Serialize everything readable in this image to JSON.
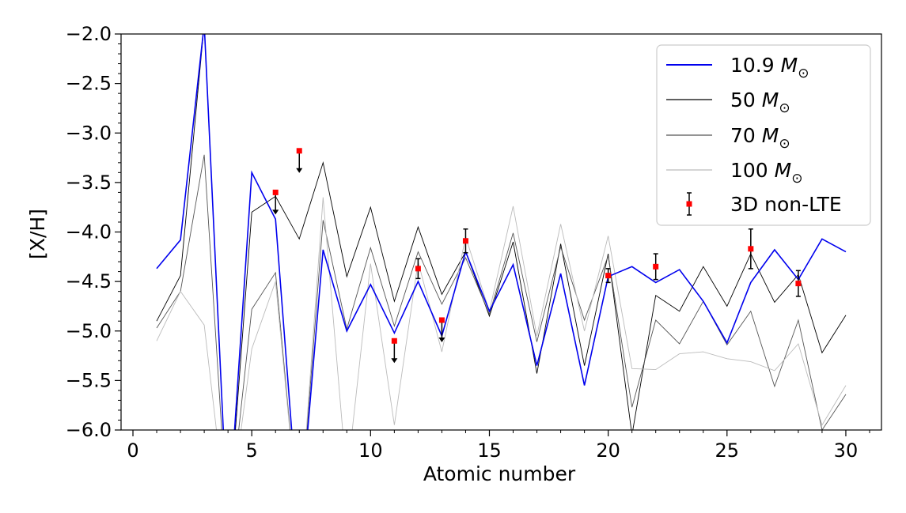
{
  "chart_data": {
    "type": "line",
    "xlabel": "Atomic number",
    "ylabel": "[X/H]",
    "xlim": [
      -0.5,
      31.5
    ],
    "ylim": [
      -6.0,
      -2.0
    ],
    "x_ticks": [
      0,
      5,
      10,
      15,
      20,
      25,
      30
    ],
    "x_tick_labels": [
      "0",
      "5",
      "10",
      "15",
      "20",
      "25",
      "30"
    ],
    "y_ticks": [
      -2.0,
      -2.5,
      -3.0,
      -3.5,
      -4.0,
      -4.5,
      -5.0,
      -5.5,
      -6.0
    ],
    "y_tick_labels": [
      "−2.0",
      "−2.5",
      "−3.0",
      "−3.5",
      "−4.0",
      "−4.5",
      "−5.0",
      "−5.5",
      "−6.0"
    ],
    "grid": false,
    "legend_position": "top-right",
    "series": [
      {
        "name": "10.9",
        "name_unit": "M",
        "color": "#0000ee",
        "width": 1.6,
        "x": [
          1,
          2,
          3,
          4,
          5,
          6,
          7,
          8,
          9,
          10,
          11,
          12,
          13,
          14,
          15,
          16,
          17,
          18,
          19,
          20,
          21,
          22,
          23,
          24,
          25,
          26,
          27,
          28,
          29,
          30
        ],
        "y": [
          -4.37,
          -4.08,
          -1.9,
          -7.0,
          -3.4,
          -3.87,
          -7.0,
          -4.18,
          -5.0,
          -4.53,
          -5.02,
          -4.5,
          -5.05,
          -4.2,
          -4.8,
          -4.33,
          -5.35,
          -4.42,
          -5.55,
          -4.45,
          -4.35,
          -4.51,
          -4.38,
          -4.7,
          -5.12,
          -4.51,
          -4.18,
          -4.48,
          -4.07,
          -4.2
        ]
      },
      {
        "name": "50",
        "name_unit": "M",
        "color": "#000000",
        "width": 0.9,
        "x": [
          1,
          2,
          3,
          4,
          5,
          6,
          7,
          8,
          9,
          10,
          11,
          12,
          13,
          14,
          15,
          16,
          17,
          18,
          19,
          20,
          21,
          22,
          23,
          24,
          25,
          26,
          27,
          28,
          29,
          30
        ],
        "y": [
          -4.9,
          -4.44,
          -1.9,
          -7.0,
          -3.8,
          -3.64,
          -4.07,
          -3.3,
          -4.45,
          -3.75,
          -4.7,
          -3.95,
          -4.63,
          -4.2,
          -4.85,
          -4.1,
          -5.43,
          -4.12,
          -5.35,
          -4.22,
          -6.05,
          -4.64,
          -4.8,
          -4.35,
          -4.75,
          -4.22,
          -4.71,
          -4.43,
          -5.22,
          -4.84
        ]
      },
      {
        "name": "70",
        "name_unit": "M",
        "color": "#555555",
        "width": 0.9,
        "x": [
          1,
          2,
          3,
          4,
          5,
          6,
          7,
          8,
          9,
          10,
          11,
          12,
          13,
          14,
          15,
          16,
          17,
          18,
          19,
          20,
          21,
          22,
          23,
          24,
          25,
          26,
          27,
          28,
          29,
          30
        ],
        "y": [
          -4.97,
          -4.6,
          -3.22,
          -7.0,
          -4.78,
          -4.41,
          -7.0,
          -3.88,
          -4.98,
          -4.16,
          -4.95,
          -4.2,
          -4.73,
          -4.26,
          -4.83,
          -4.01,
          -5.11,
          -4.15,
          -4.89,
          -4.24,
          -5.77,
          -4.89,
          -5.13,
          -4.7,
          -5.14,
          -4.8,
          -5.56,
          -4.89,
          -6.0,
          -5.64
        ]
      },
      {
        "name": "100",
        "name_unit": "M",
        "color": "#bbbbbb",
        "width": 0.9,
        "x": [
          1,
          2,
          3,
          4,
          5,
          6,
          7,
          8,
          9,
          10,
          11,
          12,
          13,
          14,
          15,
          16,
          17,
          18,
          19,
          20,
          21,
          22,
          23,
          24,
          25,
          26,
          27,
          28,
          29,
          30
        ],
        "y": [
          -5.1,
          -4.6,
          -4.94,
          -7.0,
          -5.18,
          -4.5,
          -7.0,
          -3.65,
          -6.5,
          -4.32,
          -5.95,
          -4.3,
          -5.21,
          -4.05,
          -4.8,
          -3.74,
          -5.05,
          -3.92,
          -5.0,
          -4.04,
          -5.38,
          -5.39,
          -5.23,
          -5.21,
          -5.28,
          -5.31,
          -5.4,
          -5.13,
          -5.95,
          -5.55
        ]
      }
    ],
    "observations": {
      "name": "3D non-LTE",
      "color": "#ff0000",
      "points": [
        {
          "x": 6,
          "y": -3.6,
          "err": null,
          "upper_limit": true
        },
        {
          "x": 7,
          "y": -3.18,
          "err": null,
          "upper_limit": true
        },
        {
          "x": 11,
          "y": -5.1,
          "err": null,
          "upper_limit": true
        },
        {
          "x": 12,
          "y": -4.37,
          "err": 0.1,
          "upper_limit": false
        },
        {
          "x": 13,
          "y": -4.89,
          "err": null,
          "upper_limit": true
        },
        {
          "x": 14,
          "y": -4.09,
          "err": 0.12,
          "upper_limit": false
        },
        {
          "x": 20,
          "y": -4.44,
          "err": 0.07,
          "upper_limit": false
        },
        {
          "x": 22,
          "y": -4.35,
          "err": 0.13,
          "upper_limit": false
        },
        {
          "x": 26,
          "y": -4.17,
          "err": 0.2,
          "upper_limit": false
        },
        {
          "x": 28,
          "y": -4.52,
          "err": 0.13,
          "upper_limit": false
        }
      ]
    },
    "legend_subscript": "⊙"
  }
}
